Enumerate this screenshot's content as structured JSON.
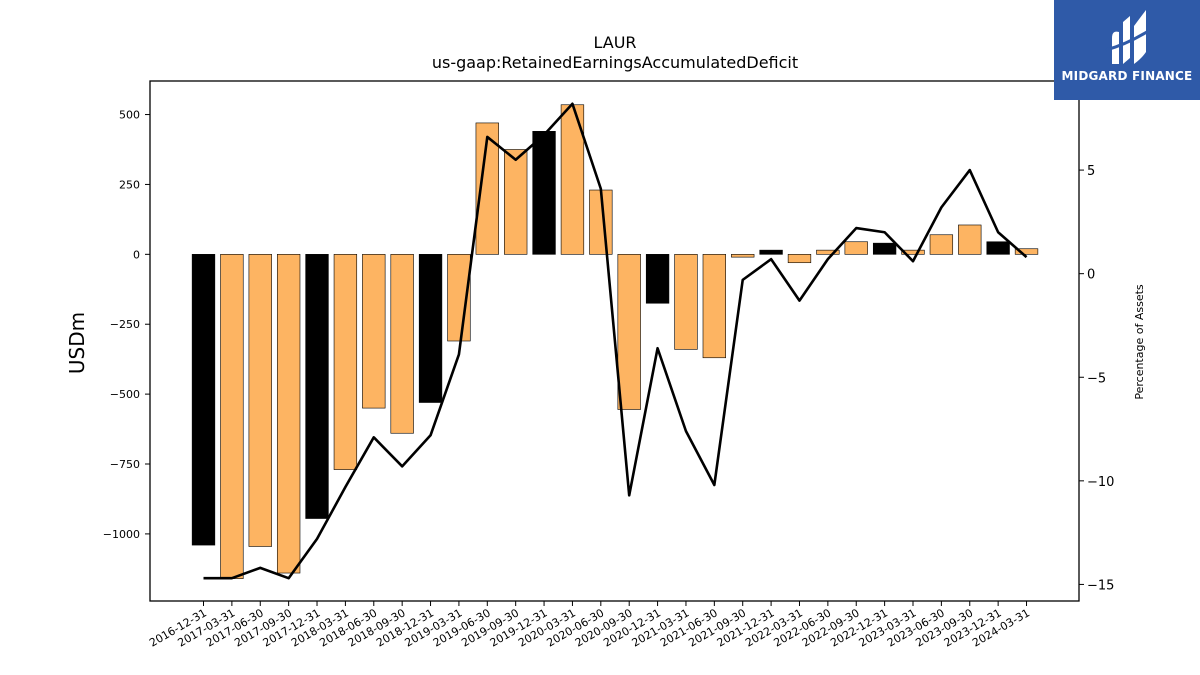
{
  "chart_data": {
    "type": "bar",
    "title": "LAUR",
    "subtitle": "us-gaap:RetainedEarningsAccumulatedDeficit",
    "ylabel": "USDm",
    "y2label": "Percentage of Assets",
    "ylim": [
      -1240,
      620
    ],
    "y2lim": [
      -15.8,
      9.3
    ],
    "yticks": [
      -1000,
      -750,
      -500,
      -250,
      0,
      250,
      500
    ],
    "y2ticks": [
      -15,
      -10,
      -5,
      0,
      5
    ],
    "categories": [
      "2016-12-31",
      "2017-03-31",
      "2017-06-30",
      "2017-09-30",
      "2017-12-31",
      "2018-03-31",
      "2018-06-30",
      "2018-09-30",
      "2018-12-31",
      "2019-03-31",
      "2019-06-30",
      "2019-09-30",
      "2019-12-31",
      "2020-03-31",
      "2020-06-30",
      "2020-09-30",
      "2020-12-31",
      "2021-03-31",
      "2021-06-30",
      "2021-09-30",
      "2021-12-31",
      "2022-03-31",
      "2022-06-30",
      "2022-09-30",
      "2022-12-31",
      "2023-03-31",
      "2023-06-30",
      "2023-09-30",
      "2023-12-31",
      "2024-03-31"
    ],
    "series": [
      {
        "type": "bar",
        "values": [
          -1040,
          -1160,
          -1045,
          -1140,
          -945,
          -770,
          -550,
          -640,
          -530,
          -310,
          470,
          375,
          440,
          535,
          230,
          -555,
          -175,
          -340,
          -370,
          -10,
          15,
          -30,
          15,
          45,
          40,
          15,
          70,
          105,
          45,
          20
        ],
        "colors": [
          "#000000",
          "#fdb462",
          "#fdb462",
          "#fdb462",
          "#000000",
          "#fdb462",
          "#fdb462",
          "#fdb462",
          "#000000",
          "#fdb462",
          "#fdb462",
          "#fdb462",
          "#000000",
          "#fdb462",
          "#fdb462",
          "#fdb462",
          "#000000",
          "#fdb462",
          "#fdb462",
          "#fdb462",
          "#000000",
          "#fdb462",
          "#fdb462",
          "#fdb462",
          "#000000",
          "#fdb462",
          "#fdb462",
          "#fdb462",
          "#000000",
          "#fdb462"
        ]
      },
      {
        "type": "line",
        "axis": "right",
        "color": "#000000",
        "values": [
          -14.7,
          -14.7,
          -14.2,
          -14.7,
          -12.8,
          -10.3,
          -7.9,
          -9.3,
          -7.8,
          -3.9,
          6.6,
          5.5,
          6.7,
          8.2,
          4.1,
          -10.7,
          -3.6,
          -7.6,
          -10.2,
          -0.3,
          0.7,
          -1.3,
          0.7,
          2.2,
          2.0,
          0.6,
          3.2,
          5.0,
          2.0,
          0.8
        ]
      }
    ]
  },
  "logo": {
    "name": "MIDGARD FINANCE",
    "bg_color": "#2f5aa8"
  }
}
